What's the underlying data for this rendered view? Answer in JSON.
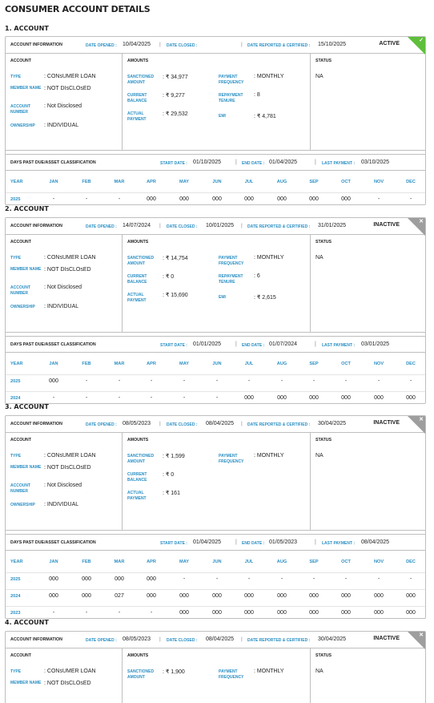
{
  "page_title": "CONSUMER ACCOUNT DETAILS",
  "labels": {
    "account_information": "ACCOUNT INFORMATION",
    "date_opened": "DATE OPENED",
    "date_closed": "DATE CLOSED",
    "date_reported": "DATE REPORTED & CERTIFIED",
    "account": "ACCOUNT",
    "amounts": "AMOUNTS",
    "status": "STATUS",
    "type": "TYPE",
    "member_name": "MEMBER NAME",
    "account_number": "ACCOUNT NUMBER",
    "ownership": "OWNERSHIP",
    "sanctioned_amount": "SANCTIONED AMOUNT",
    "current_balance": "CURRENT BALANCE",
    "actual_payment": "ACTUAL PAYMENT",
    "payment_frequency": "PAYMENT FREQUENCY",
    "repayment_tenure": "REPAYMENT TENURE",
    "emi": "EMI",
    "dpd_title": "DAYS PAST DUE/ASSET CLASSIFICATION",
    "start_date": "START DATE",
    "end_date": "END DATE",
    "last_payment": "LAST PAYMENT",
    "year": "YEAR",
    "months": [
      "JAN",
      "FEB",
      "MAR",
      "APR",
      "MAY",
      "JUN",
      "JUL",
      "AUG",
      "SEP",
      "OCT",
      "NOV",
      "DEC"
    ]
  },
  "accounts": [
    {
      "heading": "1. ACCOUNT",
      "status_badge": "ACTIVE",
      "date_opened": "10/04/2025",
      "date_closed": "",
      "date_reported": "15/10/2025",
      "type": "CONsUMER LOAN",
      "member_name": "NOT DIsCLOsED",
      "account_number": "Not Disclosed",
      "ownership": "INDIVIDUAL",
      "sanctioned_amount": "₹ 34,977",
      "current_balance": "₹ 9,277",
      "actual_payment": "₹ 29,532",
      "payment_frequency": "MONTHLY",
      "repayment_tenure": "8",
      "emi": "₹ 4,781",
      "status": "NA",
      "start_date": "01/10/2025",
      "end_date": "01/04/2025",
      "last_payment": "03/10/2025",
      "dpd": [
        {
          "year": "2025",
          "values": [
            "-",
            "-",
            "-",
            "000",
            "000",
            "000",
            "000",
            "000",
            "000",
            "000",
            "-",
            "-"
          ]
        }
      ]
    },
    {
      "heading": "2. ACCOUNT",
      "status_badge": "INACTIVE",
      "date_opened": "14/07/2024",
      "date_closed": "10/01/2025",
      "date_reported": "31/01/2025",
      "type": "CONsUMER LOAN",
      "member_name": "NOT DIsCLOsED",
      "account_number": "Not Disclosed",
      "ownership": "INDIVIDUAL",
      "sanctioned_amount": "₹ 14,754",
      "current_balance": "₹ 0",
      "actual_payment": "₹ 15,690",
      "payment_frequency": "MONTHLY",
      "repayment_tenure": "6",
      "emi": "₹ 2,615",
      "status": "NA",
      "start_date": "01/01/2025",
      "end_date": "01/07/2024",
      "last_payment": "03/01/2025",
      "dpd": [
        {
          "year": "2025",
          "values": [
            "000",
            "-",
            "-",
            "-",
            "-",
            "-",
            "-",
            "-",
            "-",
            "-",
            "-",
            "-"
          ]
        },
        {
          "year": "2024",
          "values": [
            "-",
            "-",
            "-",
            "-",
            "-",
            "-",
            "000",
            "000",
            "000",
            "000",
            "000",
            "000"
          ]
        }
      ]
    },
    {
      "heading": "3. ACCOUNT",
      "status_badge": "INACTIVE",
      "date_opened": "08/05/2023",
      "date_closed": "08/04/2025",
      "date_reported": "30/04/2025",
      "type": "CONsUMER LOAN",
      "member_name": "NOT DIsCLOsED",
      "account_number": "Not Disclosed",
      "ownership": "INDIVIDUAL",
      "sanctioned_amount": "₹ 1,599",
      "current_balance": "₹ 0",
      "actual_payment": "₹ 161",
      "payment_frequency": "MONTHLY",
      "repayment_tenure": "",
      "emi": "",
      "status": "NA",
      "start_date": "01/04/2025",
      "end_date": "01/05/2023",
      "last_payment": "08/04/2025",
      "dpd": [
        {
          "year": "2025",
          "values": [
            "000",
            "000",
            "000",
            "000",
            "-",
            "-",
            "-",
            "-",
            "-",
            "-",
            "-",
            "-"
          ]
        },
        {
          "year": "2024",
          "values": [
            "000",
            "000",
            "027",
            "000",
            "000",
            "000",
            "000",
            "000",
            "000",
            "000",
            "000",
            "000"
          ]
        },
        {
          "year": "2023",
          "values": [
            "-",
            "-",
            "-",
            "-",
            "000",
            "000",
            "000",
            "000",
            "000",
            "000",
            "000",
            "000"
          ]
        }
      ]
    },
    {
      "heading": "4. ACCOUNT",
      "status_badge": "INACTIVE",
      "date_opened": "08/05/2023",
      "date_closed": "08/04/2025",
      "date_reported": "30/04/2025",
      "type": "CONsUMER LOAN",
      "member_name": "NOT DIsCLOsED",
      "sanctioned_amount": "₹ 1,900",
      "payment_frequency": "MONTHLY",
      "status": "NA"
    }
  ]
}
